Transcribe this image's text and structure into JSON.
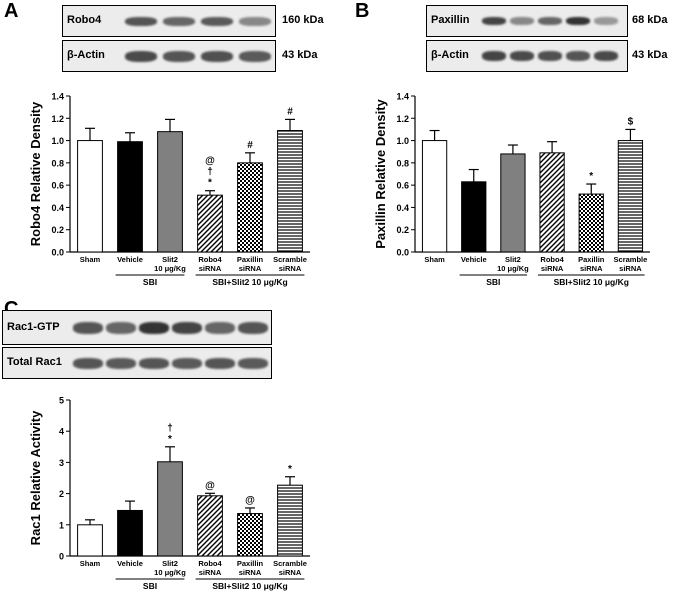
{
  "panels": {
    "A": {
      "letter": "A",
      "blot_top_label": "Robo4",
      "blot_top_kda": "160 kDa",
      "blot_bottom_label": "β-Actin",
      "blot_bottom_kda": "43 kDa"
    },
    "B": {
      "letter": "B",
      "blot_top_label": "Paxillin",
      "blot_top_kda": "68 kDa",
      "blot_bottom_label": "β-Actin",
      "blot_bottom_kda": "43 kDa"
    },
    "C": {
      "letter": "C",
      "blot_top_label": "Rac1-GTP",
      "blot_bottom_label": "Total Rac1"
    }
  },
  "chart_data": [
    {
      "id": "A",
      "type": "bar",
      "categories": [
        "Sham",
        "Vehicle",
        "Slit2\n10 μg/Kg",
        "Robo4\nsiRNA",
        "Paxillin\nsiRNA",
        "Scramble\nsiRNA"
      ],
      "values": [
        1.0,
        0.99,
        1.08,
        0.51,
        0.8,
        1.09
      ],
      "errors": [
        0.11,
        0.08,
        0.11,
        0.04,
        0.09,
        0.1
      ],
      "fills": [
        "white",
        "black",
        "gray",
        "diag",
        "check",
        "hlines"
      ],
      "annotations": [
        "",
        "",
        "",
        "@\n†\n*",
        "#",
        "#"
      ],
      "ylabel": "Robo4 Relative Density",
      "ylim": [
        0,
        1.4
      ],
      "yticks": [
        "0.0",
        "0.2",
        "0.4",
        "0.6",
        "0.8",
        "1.0",
        "1.2",
        "1.4"
      ],
      "groups": [
        {
          "label": "SBI",
          "from": 1,
          "to": 2
        },
        {
          "label": "SBI+Slit2 10 μg/Kg",
          "from": 3,
          "to": 5
        }
      ]
    },
    {
      "id": "B",
      "type": "bar",
      "categories": [
        "Sham",
        "Vehicle",
        "Slit2\n10 μg/Kg",
        "Robo4\nsiRNA",
        "Paxillin\nsiRNA",
        "Scramble\nsiRNA"
      ],
      "values": [
        1.0,
        0.63,
        0.88,
        0.89,
        0.52,
        1.0
      ],
      "errors": [
        0.09,
        0.11,
        0.08,
        0.1,
        0.09,
        0.1
      ],
      "fills": [
        "white",
        "black",
        "gray",
        "diag",
        "check",
        "hlines"
      ],
      "annotations": [
        "",
        "",
        "",
        "",
        "*",
        "$"
      ],
      "ylabel": "Paxillin Relative Density",
      "ylim": [
        0,
        1.4
      ],
      "yticks": [
        "0.0",
        "0.2",
        "0.4",
        "0.6",
        "0.8",
        "1.0",
        "1.2",
        "1.4"
      ],
      "groups": [
        {
          "label": "SBI",
          "from": 1,
          "to": 2
        },
        {
          "label": "SBI+Slit2 10 μg/Kg",
          "from": 3,
          "to": 5
        }
      ]
    },
    {
      "id": "C",
      "type": "bar",
      "categories": [
        "Sham",
        "Vehicle",
        "Slit2\n10 μg/Kg",
        "Robo4\nsiRNA",
        "Paxillin\nsiRNA",
        "Scramble\nsiRNA"
      ],
      "values": [
        1.0,
        1.46,
        3.02,
        1.93,
        1.36,
        2.27
      ],
      "errors": [
        0.16,
        0.3,
        0.48,
        0.08,
        0.18,
        0.27
      ],
      "fills": [
        "white",
        "black",
        "gray",
        "diag",
        "check",
        "hlines"
      ],
      "annotations": [
        "",
        "",
        "†\n*",
        "@",
        "@",
        "*"
      ],
      "ylabel": "Rac1 Relative Activity",
      "ylim": [
        0,
        5
      ],
      "yticks": [
        "0",
        "1",
        "2",
        "3",
        "4",
        "5"
      ],
      "groups": [
        {
          "label": "SBI",
          "from": 1,
          "to": 2
        },
        {
          "label": "SBI+Slit2 10 μg/Kg",
          "from": 3,
          "to": 5
        }
      ]
    }
  ]
}
